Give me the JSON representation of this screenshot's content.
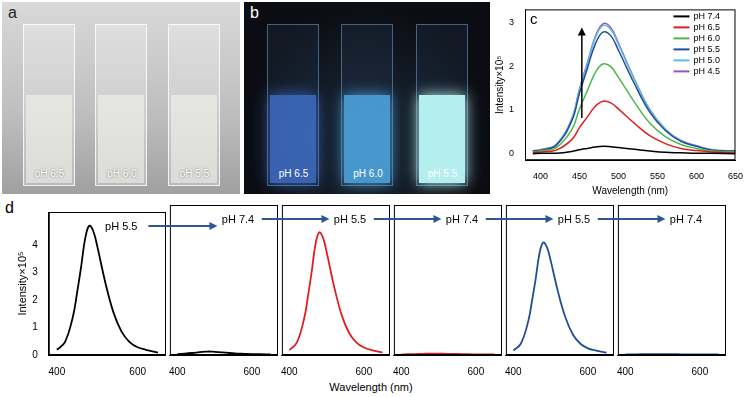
{
  "photos": [
    {
      "label": "a",
      "cuvettes": [
        "pH 6.5",
        "pH 6.0",
        "pH 5.5"
      ]
    },
    {
      "label": "b",
      "cuvettes": [
        "pH 6.5",
        "pH 6.0",
        "pH 5.5"
      ]
    }
  ],
  "chart_data": [
    {
      "label": "c",
      "type": "line",
      "xlabel": "Wavelength (nm)",
      "ylabel": "Intensity×10⁵",
      "xlim": [
        380,
        650
      ],
      "xticks": [
        400,
        450,
        500,
        550,
        600,
        650
      ],
      "ylim": [
        -0.15,
        3.3
      ],
      "yticks": [
        0,
        1,
        2,
        3
      ],
      "legend": "upper right",
      "grid": false,
      "x": [
        390,
        400,
        420,
        440,
        450,
        460,
        470,
        480,
        490,
        500,
        520,
        540,
        560,
        580,
        600,
        620,
        650
      ],
      "series": [
        {
          "name": "pH 7.4",
          "color": "#000000",
          "values": [
            0.0,
            0.01,
            0.01,
            0.05,
            0.09,
            0.12,
            0.15,
            0.17,
            0.16,
            0.14,
            0.1,
            0.06,
            0.03,
            0.02,
            0.01,
            0.01,
            0.0
          ]
        },
        {
          "name": "pH 6.5",
          "color": "#e02020",
          "values": [
            0.02,
            0.04,
            0.08,
            0.32,
            0.6,
            0.84,
            1.08,
            1.2,
            1.16,
            1.02,
            0.7,
            0.41,
            0.23,
            0.12,
            0.07,
            0.04,
            0.02
          ]
        },
        {
          "name": "pH 6.0",
          "color": "#4cb84c",
          "values": [
            0.04,
            0.06,
            0.14,
            0.55,
            1.03,
            1.44,
            1.85,
            2.05,
            1.99,
            1.74,
            1.19,
            0.7,
            0.39,
            0.21,
            0.12,
            0.06,
            0.04
          ]
        },
        {
          "name": "pH 5.5",
          "color": "#1f4e9c",
          "values": [
            0.06,
            0.08,
            0.19,
            0.75,
            1.39,
            1.95,
            2.5,
            2.78,
            2.7,
            2.36,
            1.61,
            0.95,
            0.53,
            0.28,
            0.17,
            0.08,
            0.06
          ]
        },
        {
          "name": "pH 5.0",
          "color": "#5bc0de",
          "values": [
            0.06,
            0.09,
            0.2,
            0.79,
            1.47,
            2.05,
            2.64,
            2.93,
            2.84,
            2.49,
            1.7,
            1.0,
            0.56,
            0.29,
            0.18,
            0.09,
            0.06
          ]
        },
        {
          "name": "pH 4.5",
          "color": "#a050c0",
          "values": [
            0.06,
            0.09,
            0.21,
            0.8,
            1.49,
            2.08,
            2.67,
            2.97,
            2.88,
            2.52,
            1.72,
            1.01,
            0.56,
            0.3,
            0.18,
            0.09,
            0.06
          ]
        }
      ]
    },
    {
      "label": "d",
      "type": "line",
      "xlabel": "Wavelength (nm)",
      "ylabel": "Intensity×10⁵",
      "xlim": [
        380,
        670
      ],
      "xticks": [
        400,
        600
      ],
      "ylim": [
        0,
        5.2
      ],
      "yticks": [
        0,
        1,
        2,
        3,
        4
      ],
      "grid": false,
      "x": [
        400,
        420,
        440,
        450,
        460,
        470,
        480,
        490,
        500,
        520,
        540,
        560,
        580,
        600,
        620,
        650
      ],
      "subplots": [
        {
          "title": "pH 5.5",
          "color": "#000000",
          "values": [
            0.19,
            0.47,
            1.41,
            2.26,
            3.2,
            4.23,
            4.7,
            4.51,
            3.95,
            2.63,
            1.55,
            0.85,
            0.47,
            0.28,
            0.19,
            0.09
          ]
        },
        {
          "title": "pH 7.4",
          "color": "#000000",
          "values": [
            0.03,
            0.05,
            0.07,
            0.08,
            0.1,
            0.11,
            0.12,
            0.12,
            0.11,
            0.09,
            0.07,
            0.05,
            0.04,
            0.03,
            0.03,
            0.02
          ]
        },
        {
          "title": "pH 5.5",
          "color": "#e02020",
          "values": [
            0.17,
            0.43,
            1.28,
            2.04,
            2.89,
            3.83,
            4.25,
            4.08,
            3.57,
            2.38,
            1.4,
            0.77,
            0.43,
            0.26,
            0.17,
            0.09
          ]
        },
        {
          "title": "pH 7.4",
          "color": "#e02020",
          "values": [
            0.02,
            0.03,
            0.03,
            0.04,
            0.04,
            0.05,
            0.05,
            0.05,
            0.05,
            0.04,
            0.04,
            0.03,
            0.03,
            0.02,
            0.02,
            0.02
          ]
        },
        {
          "title": "pH 5.5",
          "color": "#1f4e9c",
          "values": [
            0.16,
            0.39,
            1.17,
            1.87,
            2.65,
            3.51,
            3.9,
            3.74,
            3.28,
            2.18,
            1.29,
            0.7,
            0.39,
            0.23,
            0.16,
            0.08
          ]
        },
        {
          "title": "pH 7.4",
          "color": "#1f4e9c",
          "values": [
            0.02,
            0.02,
            0.03,
            0.03,
            0.03,
            0.03,
            0.03,
            0.03,
            0.03,
            0.03,
            0.03,
            0.02,
            0.02,
            0.02,
            0.02,
            0.02
          ]
        }
      ]
    }
  ]
}
